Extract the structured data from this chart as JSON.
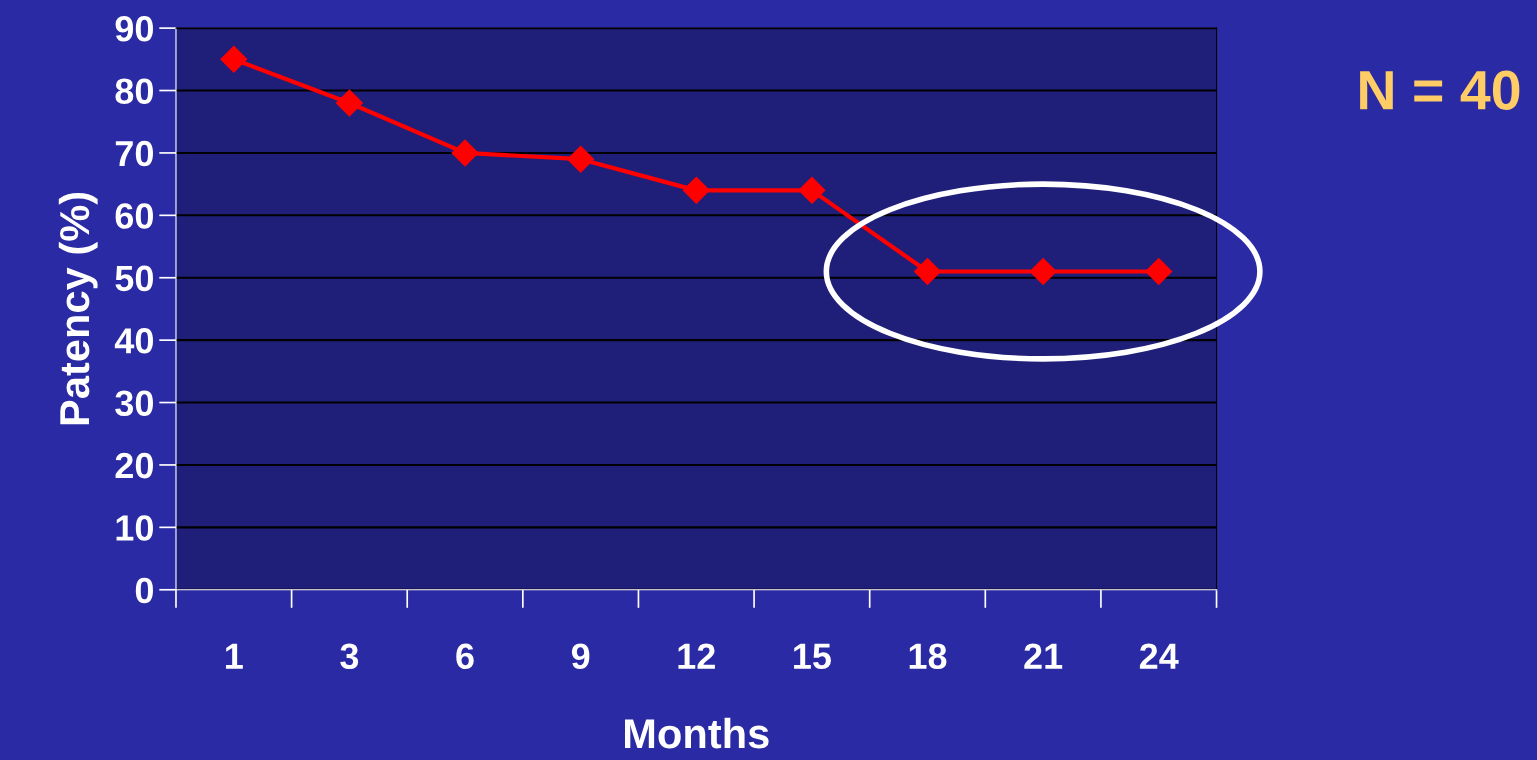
{
  "chart_data": {
    "type": "line",
    "xlabel": "Months",
    "ylabel": "Patency (%)",
    "categories": [
      "1",
      "3",
      "6",
      "9",
      "12",
      "15",
      "18",
      "21",
      "24"
    ],
    "series": [
      {
        "color": "#ff0000",
        "values": [
          85,
          78,
          70,
          69,
          64,
          64,
          51,
          51,
          51
        ]
      }
    ],
    "ylim": [
      0,
      90
    ],
    "yticks": [
      0,
      10,
      20,
      30,
      40,
      50,
      60,
      70,
      80,
      90
    ],
    "grid": "y",
    "marker": "diamond",
    "line_style": "solid",
    "legend": false,
    "annotations": [
      "N = 40"
    ]
  }
}
